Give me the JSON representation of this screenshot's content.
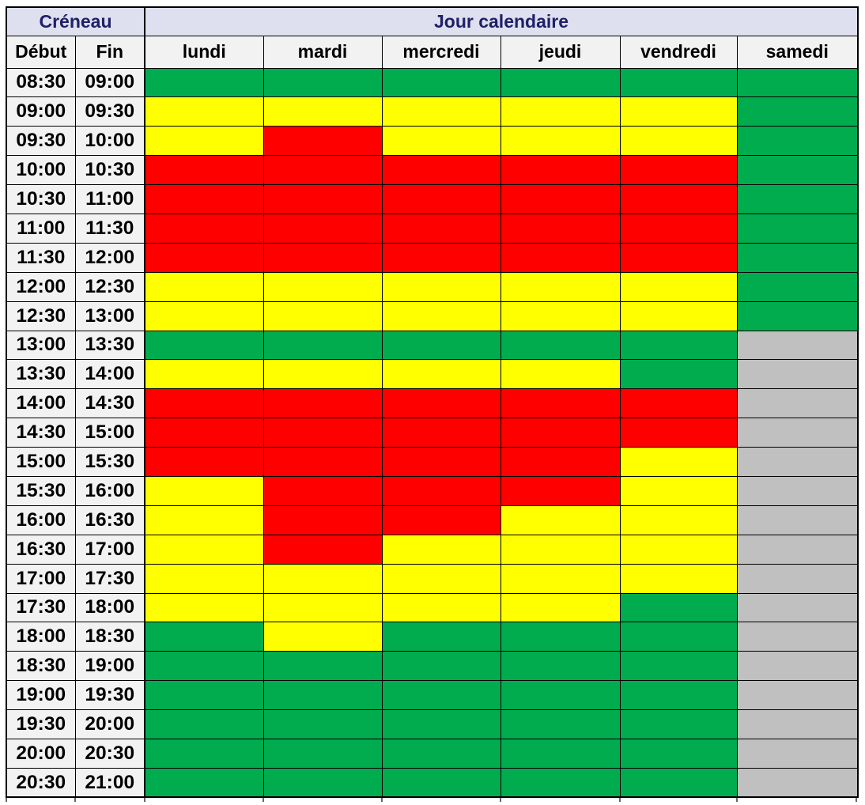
{
  "table": {
    "creneau_label": "Créneau",
    "jour_label": "Jour calendaire",
    "debut_label": "Début",
    "fin_label": "Fin",
    "days": [
      "lundi",
      "mardi",
      "mercredi",
      "jeudi",
      "vendredi",
      "samedi"
    ],
    "colors": {
      "header_band_bg": "#DEDFEF",
      "header_band_text": "#1F2066",
      "subheader_bg": "#F2F2F2",
      "time_cell_bg": "#F2F2F2",
      "green": "#00AC4E",
      "yellow": "#FFFF00",
      "red": "#FF0000",
      "gray": "#C0C0C0",
      "border": "#000000"
    },
    "rows": [
      {
        "debut": "08:30",
        "fin": "09:00",
        "cells": [
          "green",
          "green",
          "green",
          "green",
          "green",
          "green"
        ]
      },
      {
        "debut": "09:00",
        "fin": "09:30",
        "cells": [
          "yellow",
          "yellow",
          "yellow",
          "yellow",
          "yellow",
          "green"
        ]
      },
      {
        "debut": "09:30",
        "fin": "10:00",
        "cells": [
          "yellow",
          "red",
          "yellow",
          "yellow",
          "yellow",
          "green"
        ]
      },
      {
        "debut": "10:00",
        "fin": "10:30",
        "cells": [
          "red",
          "red",
          "red",
          "red",
          "red",
          "green"
        ]
      },
      {
        "debut": "10:30",
        "fin": "11:00",
        "cells": [
          "red",
          "red",
          "red",
          "red",
          "red",
          "green"
        ]
      },
      {
        "debut": "11:00",
        "fin": "11:30",
        "cells": [
          "red",
          "red",
          "red",
          "red",
          "red",
          "green"
        ]
      },
      {
        "debut": "11:30",
        "fin": "12:00",
        "cells": [
          "red",
          "red",
          "red",
          "red",
          "red",
          "green"
        ]
      },
      {
        "debut": "12:00",
        "fin": "12:30",
        "cells": [
          "yellow",
          "yellow",
          "yellow",
          "yellow",
          "yellow",
          "green"
        ]
      },
      {
        "debut": "12:30",
        "fin": "13:00",
        "cells": [
          "yellow",
          "yellow",
          "yellow",
          "yellow",
          "yellow",
          "green"
        ]
      },
      {
        "debut": "13:00",
        "fin": "13:30",
        "cells": [
          "green",
          "green",
          "green",
          "green",
          "green",
          "gray"
        ]
      },
      {
        "debut": "13:30",
        "fin": "14:00",
        "cells": [
          "yellow",
          "yellow",
          "yellow",
          "yellow",
          "green",
          "gray"
        ]
      },
      {
        "debut": "14:00",
        "fin": "14:30",
        "cells": [
          "red",
          "red",
          "red",
          "red",
          "red",
          "gray"
        ]
      },
      {
        "debut": "14:30",
        "fin": "15:00",
        "cells": [
          "red",
          "red",
          "red",
          "red",
          "red",
          "gray"
        ]
      },
      {
        "debut": "15:00",
        "fin": "15:30",
        "cells": [
          "red",
          "red",
          "red",
          "red",
          "yellow",
          "gray"
        ]
      },
      {
        "debut": "15:30",
        "fin": "16:00",
        "cells": [
          "yellow",
          "red",
          "red",
          "red",
          "yellow",
          "gray"
        ]
      },
      {
        "debut": "16:00",
        "fin": "16:30",
        "cells": [
          "yellow",
          "red",
          "red",
          "yellow",
          "yellow",
          "gray"
        ]
      },
      {
        "debut": "16:30",
        "fin": "17:00",
        "cells": [
          "yellow",
          "red",
          "yellow",
          "yellow",
          "yellow",
          "gray"
        ]
      },
      {
        "debut": "17:00",
        "fin": "17:30",
        "cells": [
          "yellow",
          "yellow",
          "yellow",
          "yellow",
          "yellow",
          "gray"
        ]
      },
      {
        "debut": "17:30",
        "fin": "18:00",
        "cells": [
          "yellow",
          "yellow",
          "yellow",
          "yellow",
          "green",
          "gray"
        ]
      },
      {
        "debut": "18:00",
        "fin": "18:30",
        "cells": [
          "green",
          "yellow",
          "green",
          "green",
          "green",
          "gray"
        ]
      },
      {
        "debut": "18:30",
        "fin": "19:00",
        "cells": [
          "green",
          "green",
          "green",
          "green",
          "green",
          "gray"
        ]
      },
      {
        "debut": "19:00",
        "fin": "19:30",
        "cells": [
          "green",
          "green",
          "green",
          "green",
          "green",
          "gray"
        ]
      },
      {
        "debut": "19:30",
        "fin": "20:00",
        "cells": [
          "green",
          "green",
          "green",
          "green",
          "green",
          "gray"
        ]
      },
      {
        "debut": "20:00",
        "fin": "20:30",
        "cells": [
          "green",
          "green",
          "green",
          "green",
          "green",
          "gray"
        ]
      },
      {
        "debut": "20:30",
        "fin": "21:00",
        "cells": [
          "green",
          "green",
          "green",
          "green",
          "green",
          "gray"
        ]
      }
    ]
  }
}
